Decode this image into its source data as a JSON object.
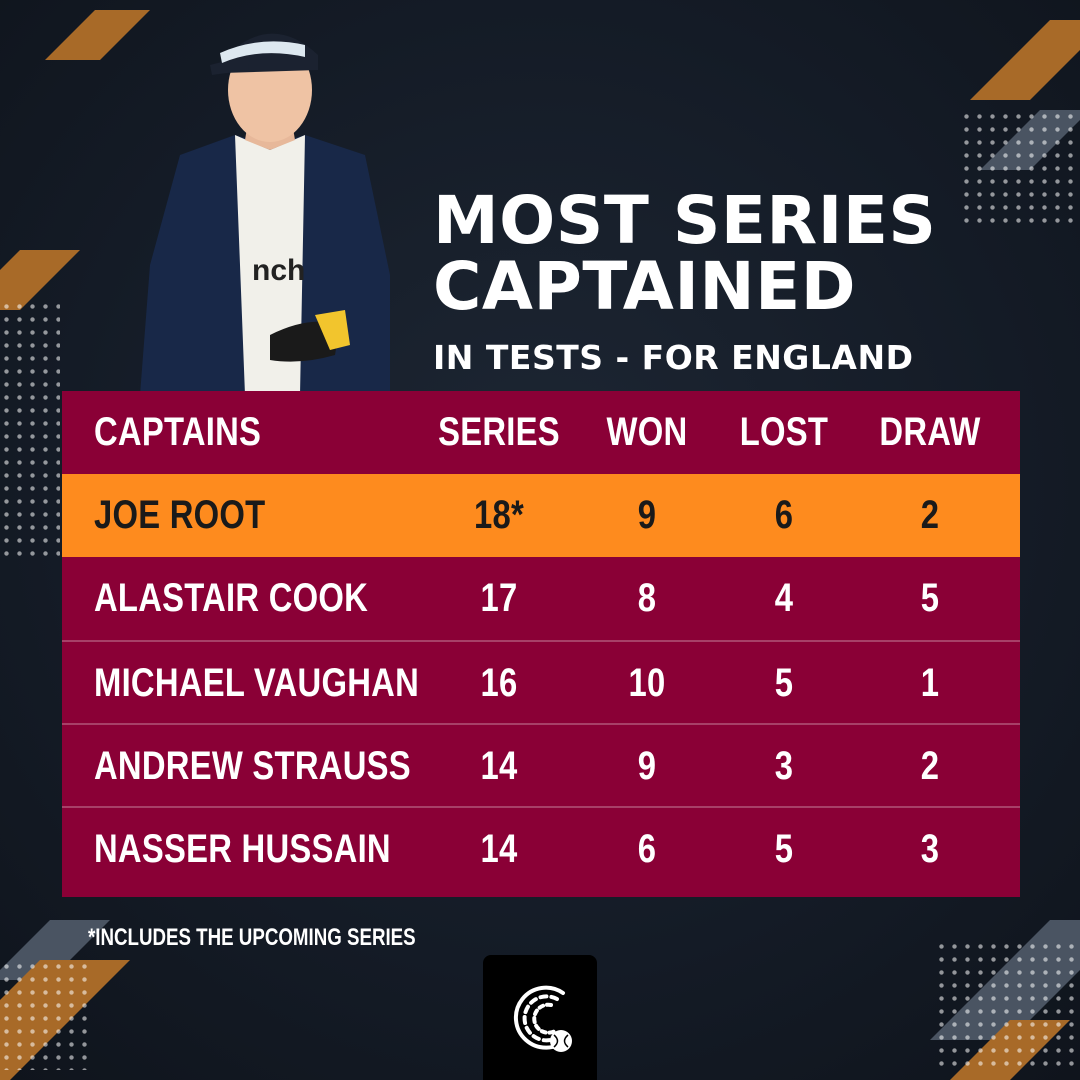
{
  "headline": {
    "line1": "MOST SERIES",
    "line2": "CAPTAINED",
    "subline": "IN TESTS - FOR ENGLAND"
  },
  "table": {
    "columns": [
      "CAPTAINS",
      "SERIES",
      "WON",
      "LOST",
      "DRAW"
    ],
    "rows": [
      {
        "captain": "JOE ROOT",
        "series": "18*",
        "won": "9",
        "lost": "6",
        "draw": "2"
      },
      {
        "captain": "ALASTAIR COOK",
        "series": "17",
        "won": "8",
        "lost": "4",
        "draw": "5"
      },
      {
        "captain": "MICHAEL VAUGHAN",
        "series": "16",
        "won": "10",
        "lost": "5",
        "draw": "1"
      },
      {
        "captain": "ANDREW STRAUSS",
        "series": "14",
        "won": "9",
        "lost": "3",
        "draw": "2"
      },
      {
        "captain": "NASSER HUSSAIN",
        "series": "14",
        "won": "6",
        "lost": "5",
        "draw": "3"
      }
    ]
  },
  "footnote": "*INCLUDES THE UPCOMING SERIES",
  "colors": {
    "background": "#141b26",
    "table_bg": "#8a0036",
    "highlight": "#fe8b1e",
    "stripe_accent": "#a86a28"
  },
  "icons": {
    "logo": "cricket-ball-logo-icon"
  }
}
